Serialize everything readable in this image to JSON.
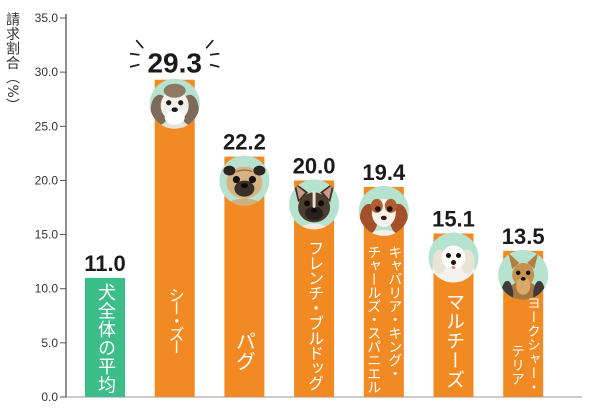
{
  "chart_data": {
    "type": "bar",
    "ylabel": "請求割合（%）",
    "ylim": [
      0,
      35
    ],
    "yticks": [
      0,
      5,
      10,
      15,
      20,
      25,
      30,
      35
    ],
    "ytick_labels": [
      "0.0",
      "5.0",
      "10.0",
      "15.0",
      "20.0",
      "25.0",
      "30.0",
      "35.0"
    ],
    "grid": false,
    "categories": [
      [
        "犬全体の平均"
      ],
      [
        "シー・ズー"
      ],
      [
        "パグ"
      ],
      [
        "フレンチ・ブルドッグ"
      ],
      [
        "キャバリア・キング・",
        "チャールズ・スパニエル"
      ],
      [
        "マルチーズ"
      ],
      [
        "ヨークシャー・",
        "テリア"
      ]
    ],
    "values": [
      11.0,
      29.3,
      22.2,
      20.0,
      19.4,
      15.1,
      13.5
    ],
    "data_labels": [
      "11.0",
      "29.3",
      "22.2",
      "20.0",
      "19.4",
      "15.1",
      "13.5"
    ],
    "bar_colors": [
      "#3dbd8a",
      "#f28a24",
      "#f28a24",
      "#f28a24",
      "#f28a24",
      "#f28a24",
      "#f28a24"
    ],
    "photos": [
      null,
      "shih-tzu-photo",
      "pug-photo",
      "french-bulldog-photo",
      "cavalier-photo",
      "maltese-photo",
      "yorkshire-terrier-photo"
    ],
    "photo_background": "#b6e3cf"
  }
}
